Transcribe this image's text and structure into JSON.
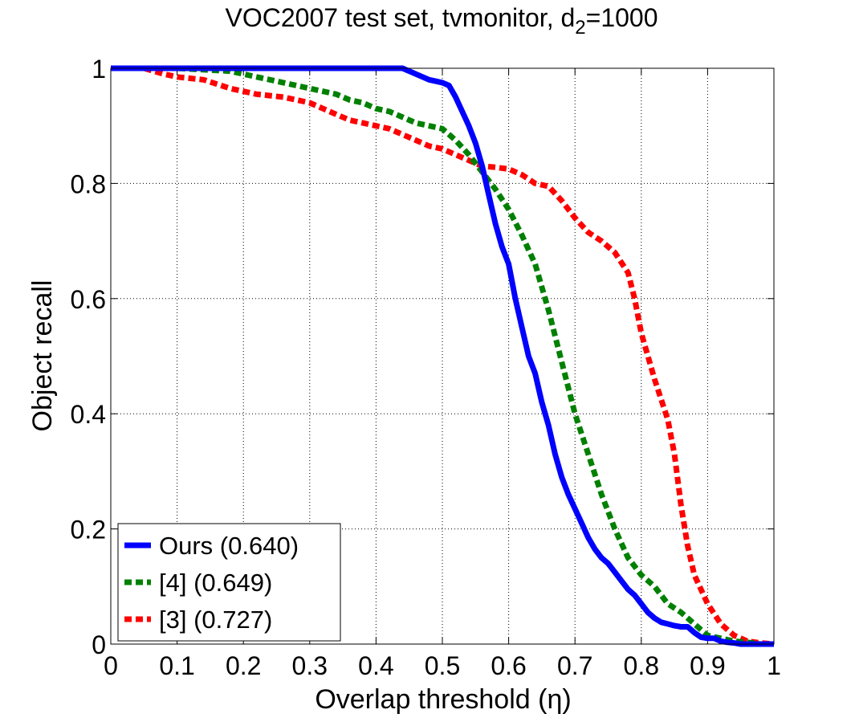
{
  "chart_data": {
    "type": "line",
    "title": {
      "main": "VOC2007 test set, tvmonitor, d",
      "subscript": "2",
      "suffix": "=1000"
    },
    "xlabel": "Overlap threshold (η)",
    "ylabel": "Object recall",
    "xlim": [
      0,
      1
    ],
    "ylim": [
      0,
      1
    ],
    "grid": true,
    "legend_position": "bottom-left",
    "xticks": [
      {
        "value": 0,
        "label": "0"
      },
      {
        "value": 0.1,
        "label": "0.1"
      },
      {
        "value": 0.2,
        "label": "0.2"
      },
      {
        "value": 0.3,
        "label": "0.3"
      },
      {
        "value": 0.4,
        "label": "0.4"
      },
      {
        "value": 0.5,
        "label": "0.5"
      },
      {
        "value": 0.6,
        "label": "0.6"
      },
      {
        "value": 0.7,
        "label": "0.7"
      },
      {
        "value": 0.8,
        "label": "0.8"
      },
      {
        "value": 0.9,
        "label": "0.9"
      },
      {
        "value": 1,
        "label": "1"
      }
    ],
    "yticks": [
      {
        "value": 0,
        "label": "0"
      },
      {
        "value": 0.2,
        "label": "0.2"
      },
      {
        "value": 0.4,
        "label": "0.4"
      },
      {
        "value": 0.6,
        "label": "0.6"
      },
      {
        "value": 0.8,
        "label": "0.8"
      },
      {
        "value": 1,
        "label": "1"
      }
    ],
    "series": [
      {
        "name": "Ours (0.640)",
        "color": "#0000ff",
        "style": "solid",
        "x": [
          0,
          0.1,
          0.2,
          0.3,
          0.4,
          0.44,
          0.46,
          0.48,
          0.5,
          0.51,
          0.52,
          0.54,
          0.55,
          0.56,
          0.57,
          0.58,
          0.59,
          0.6,
          0.61,
          0.62,
          0.63,
          0.64,
          0.65,
          0.66,
          0.67,
          0.68,
          0.69,
          0.7,
          0.71,
          0.72,
          0.73,
          0.74,
          0.75,
          0.76,
          0.77,
          0.78,
          0.79,
          0.8,
          0.81,
          0.82,
          0.83,
          0.84,
          0.85,
          0.86,
          0.87,
          0.88,
          0.89,
          0.9,
          0.91,
          0.92,
          0.93,
          0.94,
          0.95,
          0.96,
          0.97,
          0.98,
          0.99,
          1.0
        ],
        "y": [
          1,
          1,
          1,
          1,
          1,
          1,
          0.99,
          0.98,
          0.975,
          0.97,
          0.95,
          0.9,
          0.87,
          0.83,
          0.78,
          0.73,
          0.69,
          0.66,
          0.6,
          0.55,
          0.5,
          0.47,
          0.42,
          0.38,
          0.33,
          0.29,
          0.26,
          0.235,
          0.21,
          0.185,
          0.165,
          0.15,
          0.14,
          0.125,
          0.11,
          0.095,
          0.085,
          0.07,
          0.055,
          0.045,
          0.038,
          0.035,
          0.032,
          0.03,
          0.03,
          0.02,
          0.012,
          0.01,
          0.01,
          0.005,
          0.003,
          0.002,
          0,
          0,
          0,
          0,
          0,
          0
        ]
      },
      {
        "name": "[4] (0.649)",
        "color": "#008000",
        "style": "dashed",
        "x": [
          0,
          0.1,
          0.18,
          0.2,
          0.22,
          0.24,
          0.26,
          0.28,
          0.3,
          0.32,
          0.34,
          0.36,
          0.38,
          0.4,
          0.42,
          0.44,
          0.46,
          0.48,
          0.5,
          0.52,
          0.54,
          0.56,
          0.58,
          0.6,
          0.62,
          0.64,
          0.66,
          0.68,
          0.7,
          0.72,
          0.74,
          0.76,
          0.78,
          0.8,
          0.82,
          0.84,
          0.86,
          0.88,
          0.9,
          0.92,
          0.94,
          0.96,
          0.98,
          1.0
        ],
        "y": [
          1,
          1,
          0.995,
          0.99,
          0.985,
          0.98,
          0.975,
          0.97,
          0.965,
          0.96,
          0.955,
          0.945,
          0.94,
          0.93,
          0.925,
          0.915,
          0.905,
          0.9,
          0.895,
          0.875,
          0.85,
          0.82,
          0.79,
          0.755,
          0.71,
          0.66,
          0.58,
          0.49,
          0.4,
          0.33,
          0.26,
          0.2,
          0.15,
          0.12,
          0.1,
          0.07,
          0.055,
          0.035,
          0.015,
          0.01,
          0.005,
          0.003,
          0,
          0
        ]
      },
      {
        "name": "[3] (0.727)",
        "color": "#ff0000",
        "style": "dashed",
        "x": [
          0,
          0.05,
          0.08,
          0.1,
          0.14,
          0.18,
          0.2,
          0.22,
          0.26,
          0.28,
          0.3,
          0.32,
          0.34,
          0.36,
          0.38,
          0.4,
          0.42,
          0.44,
          0.46,
          0.48,
          0.5,
          0.52,
          0.54,
          0.56,
          0.58,
          0.6,
          0.62,
          0.64,
          0.66,
          0.68,
          0.7,
          0.72,
          0.74,
          0.76,
          0.78,
          0.79,
          0.8,
          0.82,
          0.84,
          0.85,
          0.86,
          0.87,
          0.88,
          0.9,
          0.92,
          0.94,
          0.96,
          0.98,
          1.0
        ],
        "y": [
          1,
          1,
          0.99,
          0.985,
          0.98,
          0.965,
          0.96,
          0.955,
          0.95,
          0.945,
          0.94,
          0.93,
          0.92,
          0.91,
          0.905,
          0.9,
          0.895,
          0.885,
          0.875,
          0.865,
          0.86,
          0.85,
          0.84,
          0.83,
          0.828,
          0.825,
          0.815,
          0.8,
          0.795,
          0.77,
          0.74,
          0.715,
          0.7,
          0.68,
          0.645,
          0.6,
          0.54,
          0.46,
          0.39,
          0.33,
          0.24,
          0.17,
          0.12,
          0.07,
          0.035,
          0.015,
          0.005,
          0.002,
          0
        ]
      }
    ]
  }
}
